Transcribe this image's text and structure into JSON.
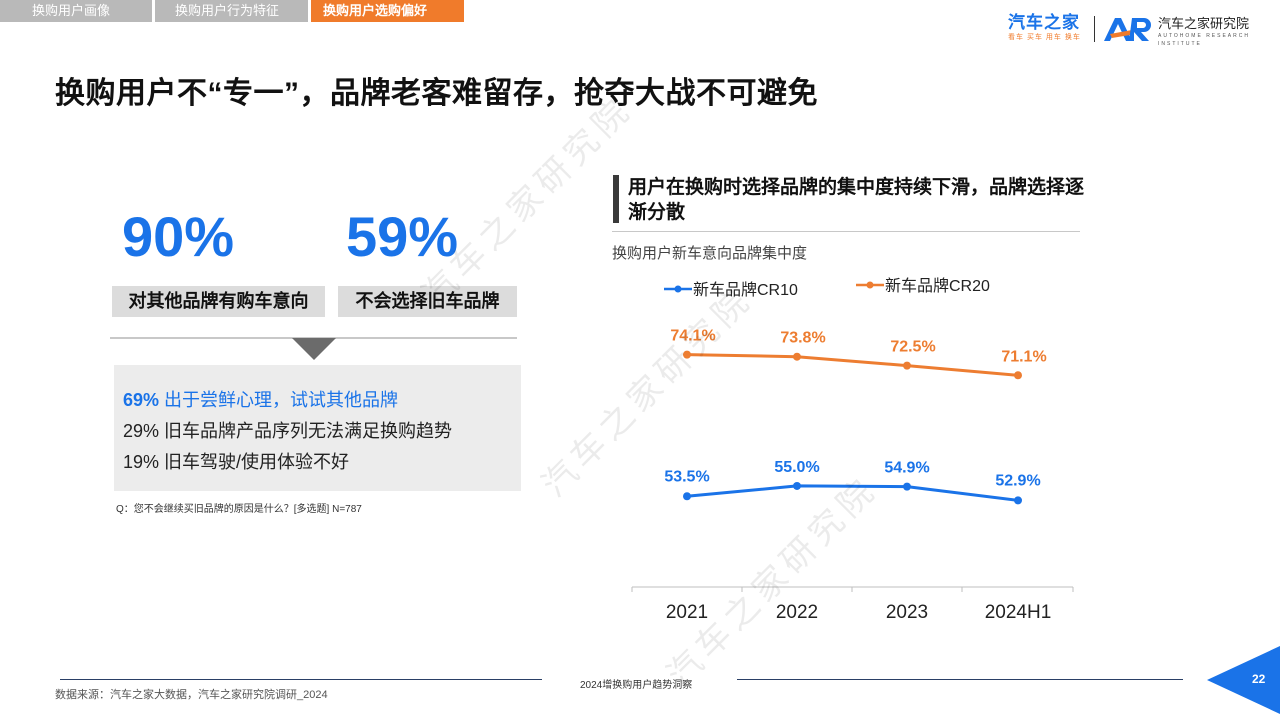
{
  "tabs": [
    {
      "label": "换购用户画像",
      "active": false
    },
    {
      "label": "换购用户行为特征",
      "active": false
    },
    {
      "label": "换购用户选购偏好",
      "active": true
    }
  ],
  "logo": {
    "brand_name": "汽车之家",
    "brand_slogan": "看车 买车 用车 换车",
    "ar_mark": "AR",
    "institute_name": "汽车之家研究院",
    "institute_en": "AUTOHOME RESEARCH INSTITUTE"
  },
  "headline": "换购用户不“专一”，品牌老客难留存，抢夺大战不可避免",
  "stats": [
    {
      "value": "90%",
      "label": "对其他品牌有购车意向"
    },
    {
      "value": "59%",
      "label": "不会选择旧车品牌"
    }
  ],
  "reasons": [
    {
      "pct": "69%",
      "text": "出于尝鲜心理，试试其他品牌"
    },
    {
      "pct": "29%",
      "text": "旧车品牌产品序列无法满足换购趋势"
    },
    {
      "pct": "19%",
      "text": "旧车驾驶/使用体验不好"
    }
  ],
  "question_note": "Q：您不会继续买旧品牌的原因是什么？[多选题] N=787",
  "chart_heading": "用户在换购时选择品牌的集中度持续下滑，品牌选择逐渐分散",
  "chart_subtitle": "换购用户新车意向品牌集中度",
  "watermark": "汽车之家研究院",
  "colors": {
    "blue": "#1a73e8",
    "orange": "#ed7d31",
    "tab_active": "#f07b2b",
    "tab_inactive": "#b9b9b9"
  },
  "chart_data": {
    "type": "line",
    "categories": [
      "2021",
      "2022",
      "2023",
      "2024H1"
    ],
    "series": [
      {
        "name": "新车品牌CR10",
        "values": [
          53.5,
          55.0,
          54.9,
          52.9
        ],
        "labels": [
          "53.5%",
          "55.0%",
          "54.9%",
          "52.9%"
        ],
        "color": "#1a73e8"
      },
      {
        "name": "新车品牌CR20",
        "values": [
          74.1,
          73.8,
          72.5,
          71.1
        ],
        "labels": [
          "74.1%",
          "73.8%",
          "72.5%",
          "71.1%"
        ],
        "color": "#ed7d31"
      }
    ],
    "legend_position": "top",
    "grid": false,
    "data_labels": true
  },
  "footer": {
    "center_text": "2024增换购用户趋势洞察",
    "source": "数据来源：汽车之家大数据，汽车之家研究院调研_2024",
    "page_number": "22"
  }
}
